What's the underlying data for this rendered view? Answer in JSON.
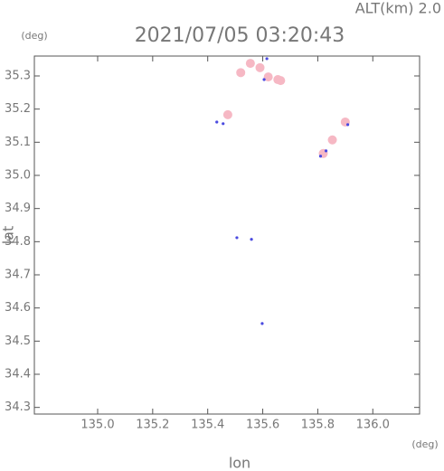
{
  "chart_data": {
    "type": "scatter",
    "title": "2021/07/05 03:20:43",
    "subtitle": "ALT(km) 2.0",
    "y_unit": "(deg)",
    "x_unit": "(deg)",
    "xlabel": "lon",
    "ylabel": "lat",
    "xlim": [
      134.77,
      136.17
    ],
    "ylim": [
      34.28,
      35.36
    ],
    "xticks": [
      {
        "value": 135,
        "label": "135.0"
      },
      135.2,
      135.4,
      135.6,
      135.8,
      {
        "value": 136,
        "label": "136.0"
      }
    ],
    "yticks": [
      34.3,
      34.4,
      34.5,
      34.6,
      34.7,
      34.8,
      34.9,
      {
        "value": 35,
        "label": "35.0"
      },
      35.1,
      35.2,
      35.3
    ],
    "series": [
      {
        "color": "#f6b8c4",
        "x": [
          135.555,
          135.52,
          135.59,
          135.62,
          135.655,
          135.665,
          135.473,
          135.853,
          135.9,
          135.82
        ],
        "y": [
          35.338,
          35.31,
          35.325,
          35.297,
          35.289,
          35.286,
          35.183,
          35.107,
          35.161,
          35.066
        ]
      },
      {
        "color": "#4a4ae0",
        "x": [
          135.433,
          135.456,
          135.506,
          135.559,
          135.598,
          135.605,
          135.909,
          135.81,
          135.83,
          135.615
        ],
        "y": [
          35.161,
          35.156,
          34.812,
          34.807,
          34.553,
          35.289,
          35.153,
          35.058,
          35.074,
          35.352
        ]
      }
    ]
  }
}
